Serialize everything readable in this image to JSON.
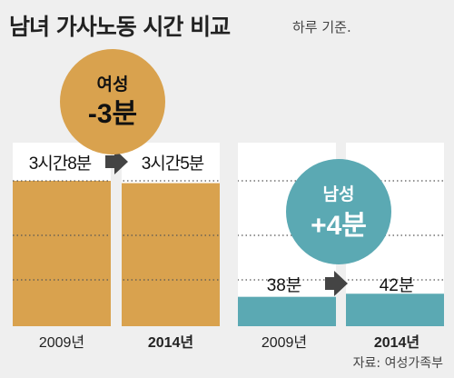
{
  "title": "남녀 가사노동 시간 비교",
  "subtitle": "하루 기준.",
  "source": "자료: 여성가족부",
  "chart_data": {
    "type": "bar",
    "unit": "분",
    "groups": [
      {
        "name": "여성",
        "change_label": "-3분",
        "color": "#d9a24e",
        "bars": [
          {
            "year": "2009년",
            "minutes": 188,
            "value_label": "3시간8분"
          },
          {
            "year": "2014년",
            "minutes": 185,
            "value_label": "3시간5분"
          }
        ]
      },
      {
        "name": "남성",
        "change_label": "+4분",
        "color": "#5ba9b3",
        "bars": [
          {
            "year": "2009년",
            "minutes": 38,
            "value_label": "38분"
          },
          {
            "year": "2014년",
            "minutes": 42,
            "value_label": "42분"
          }
        ]
      }
    ],
    "ylim": [
      0,
      188
    ],
    "grid": "dotted"
  }
}
